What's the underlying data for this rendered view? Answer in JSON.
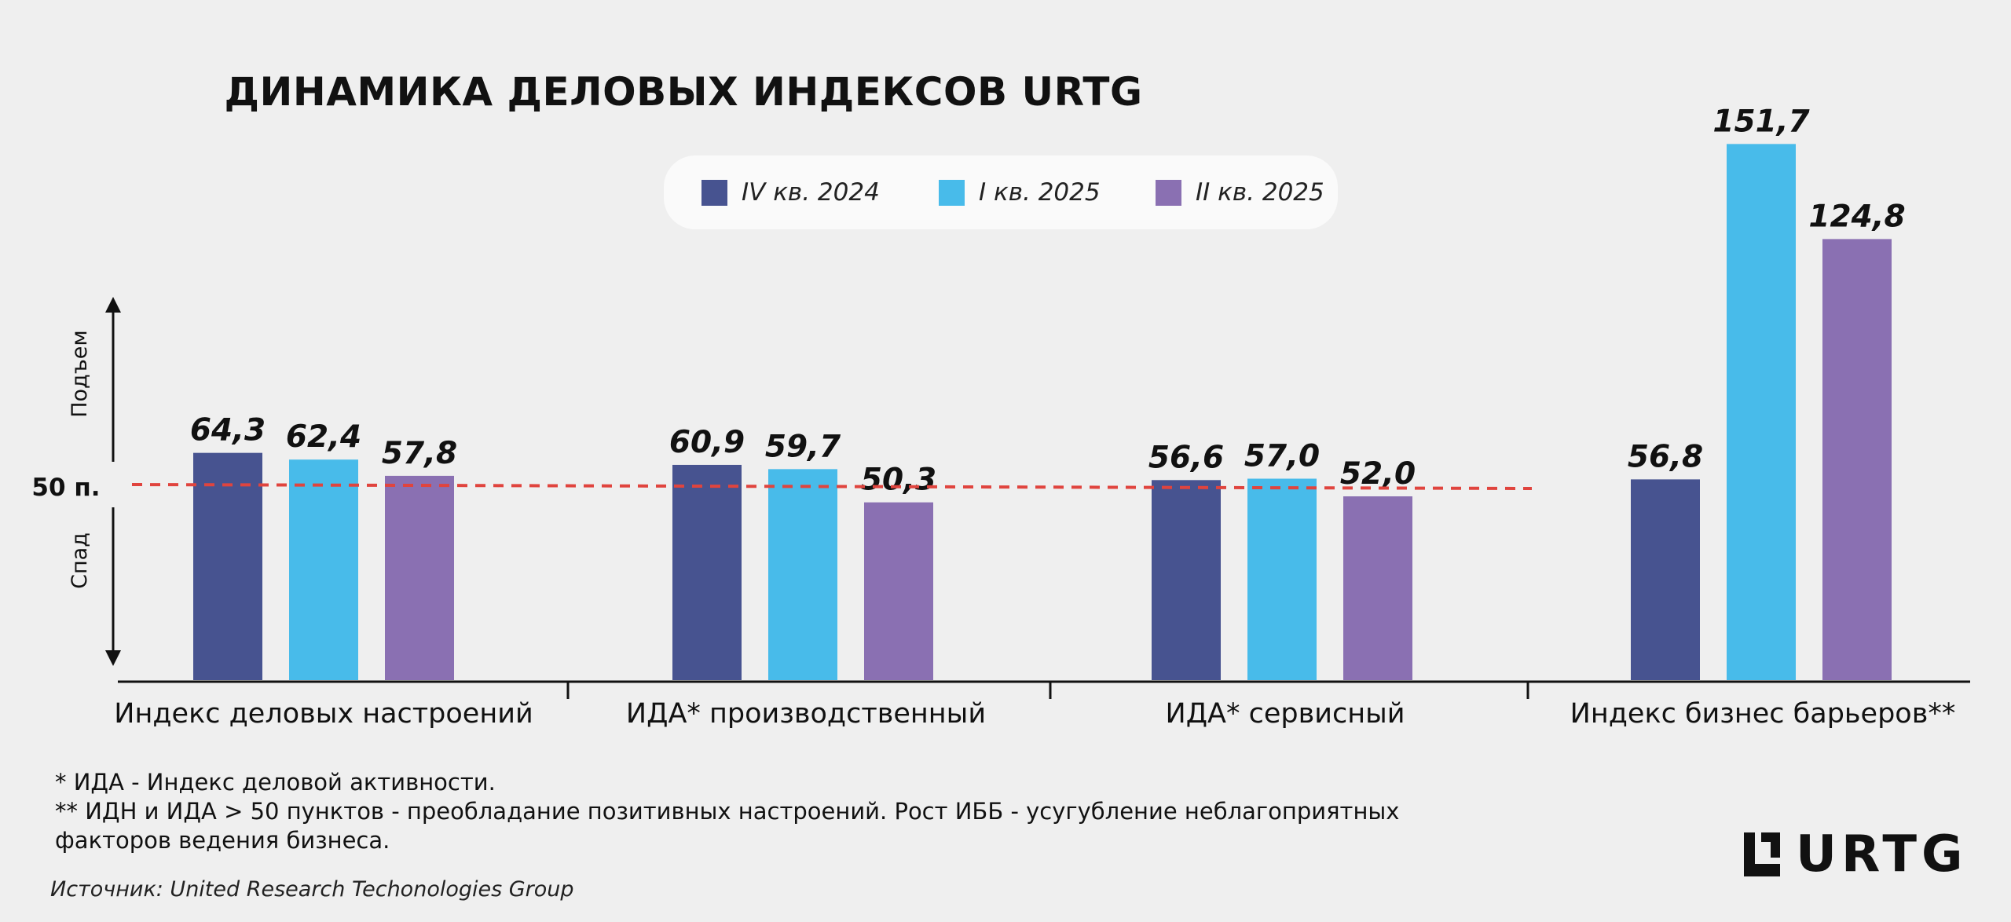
{
  "title": "ДИНАМИКА ДЕЛОВЫХ ИНДЕКСОВ URTG",
  "legend": [
    {
      "label": "IV кв. 2024",
      "color": "#475390"
    },
    {
      "label": "I кв. 2025",
      "color": "#48bbea"
    },
    {
      "label": "II кв. 2025",
      "color": "#8a70b2"
    }
  ],
  "axis": {
    "up_label": "Подъем",
    "down_label": "Спад",
    "reference_label": "50 п."
  },
  "chart_data": {
    "type": "bar",
    "categories": [
      "Индекс деловых настроений",
      "ИДА* производственный",
      "ИДА* сервисный",
      "Индекс бизнес барьеров**"
    ],
    "series": [
      {
        "name": "IV кв. 2024",
        "color": "#475390",
        "values": [
          64.3,
          60.9,
          56.6,
          56.8
        ],
        "labels": [
          "64,3",
          "60,9",
          "56,6",
          "56,8"
        ]
      },
      {
        "name": "I кв. 2025",
        "color": "#48bbea",
        "values": [
          62.4,
          59.7,
          57.0,
          151.7
        ],
        "labels": [
          "62,4",
          "59,7",
          "57,0",
          "151,7"
        ]
      },
      {
        "name": "II кв. 2025",
        "color": "#8a70b2",
        "values": [
          57.8,
          50.3,
          52.0,
          124.8
        ],
        "labels": [
          "57,8",
          "50,3",
          "52,0",
          "124,8"
        ]
      }
    ],
    "reference_line": {
      "value": 50,
      "label": "50 п.",
      "color": "#e0443e",
      "style": "dashed"
    }
  },
  "footnotes": [
    "* ИДА - Индекс деловой активности.",
    "** ИДН и ИДА > 50 пунктов - преобладание позитивных настроений. Рост ИББ - усугубление неблагоприятных",
    "факторов ведения бизнеса."
  ],
  "source": "Источник: United Research Techonologies Group",
  "logo_text": "URTG"
}
